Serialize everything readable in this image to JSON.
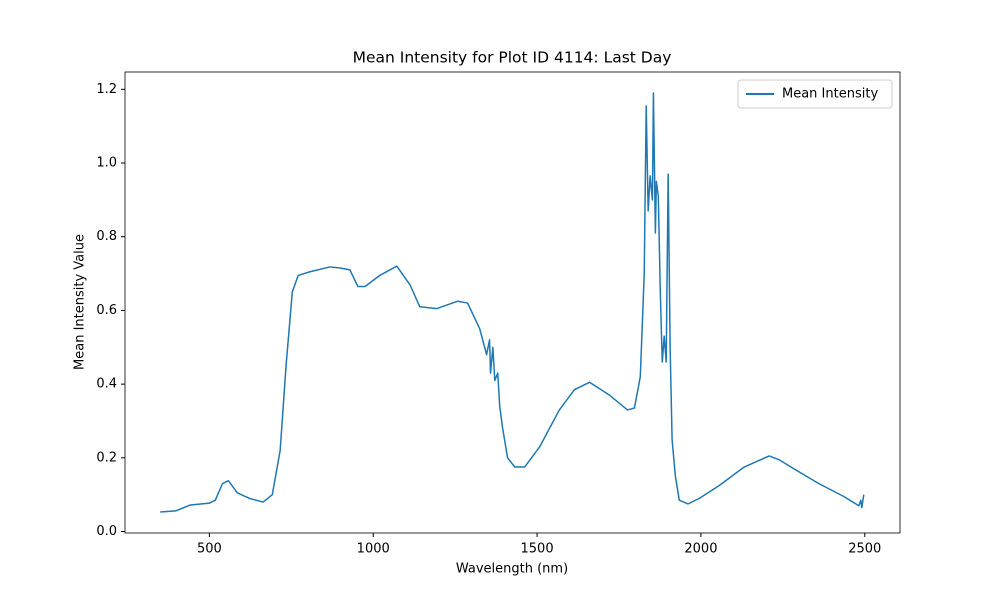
{
  "chart_data": {
    "type": "line",
    "title": "Mean Intensity for Plot ID 4114: Last Day",
    "xlabel": "Wavelength (nm)",
    "ylabel": "Mean Intensity Value",
    "x": [
      350,
      397,
      442,
      500,
      518,
      540,
      558,
      585,
      622,
      664,
      692,
      716,
      734,
      753,
      771,
      807,
      868,
      899,
      929,
      953,
      975,
      1020,
      1072,
      1112,
      1142,
      1194,
      1258,
      1288,
      1325,
      1346,
      1355,
      1358,
      1365,
      1371,
      1380,
      1386,
      1395,
      1410,
      1432,
      1462,
      1508,
      1568,
      1614,
      1660,
      1721,
      1776,
      1797,
      1815,
      1827,
      1833,
      1839,
      1845,
      1852,
      1855,
      1861,
      1864,
      1870,
      1876,
      1882,
      1888,
      1894,
      1900,
      1906,
      1912,
      1922,
      1934,
      1961,
      1995,
      2056,
      2132,
      2208,
      2238,
      2284,
      2360,
      2436,
      2482,
      2488,
      2491,
      2497
    ],
    "series": [
      {
        "name": "Mean Intensity",
        "color": "#1f77b4",
        "values": [
          0.053,
          0.056,
          0.072,
          0.077,
          0.085,
          0.13,
          0.138,
          0.105,
          0.09,
          0.08,
          0.1,
          0.22,
          0.45,
          0.65,
          0.695,
          0.705,
          0.718,
          0.715,
          0.71,
          0.665,
          0.665,
          0.695,
          0.72,
          0.67,
          0.61,
          0.605,
          0.625,
          0.62,
          0.55,
          0.48,
          0.52,
          0.43,
          0.5,
          0.41,
          0.43,
          0.34,
          0.28,
          0.2,
          0.175,
          0.175,
          0.23,
          0.33,
          0.385,
          0.405,
          0.37,
          0.33,
          0.335,
          0.42,
          0.7,
          1.155,
          0.87,
          0.965,
          0.9,
          1.19,
          0.81,
          0.95,
          0.91,
          0.65,
          0.46,
          0.53,
          0.46,
          0.97,
          0.5,
          0.25,
          0.15,
          0.085,
          0.075,
          0.09,
          0.125,
          0.175,
          0.205,
          0.195,
          0.17,
          0.13,
          0.095,
          0.07,
          0.085,
          0.065,
          0.1
        ]
      }
    ],
    "xlim": [
      242.5,
      2607.5
    ],
    "ylim": [
      -0.004,
      1.247
    ],
    "xticks": [
      500,
      1000,
      1500,
      2000,
      2500
    ],
    "yticks": [
      {
        "value": 0,
        "label": "0.0"
      },
      0.2,
      0.4,
      0.6,
      0.8,
      {
        "value": 1,
        "label": "1.0"
      },
      1.2
    ],
    "legend": "upper right"
  }
}
